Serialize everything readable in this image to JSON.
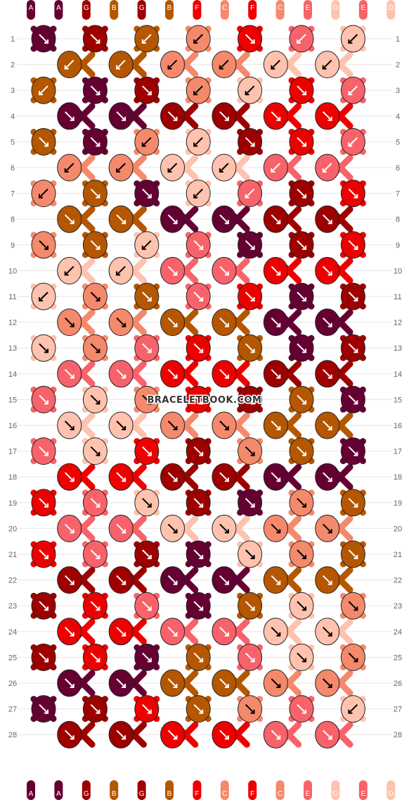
{
  "watermark": "BRACELETBOOK.COM",
  "strands_top": [
    "A",
    "A",
    "G",
    "B",
    "G",
    "B",
    "F",
    "C",
    "F",
    "C",
    "E",
    "D",
    "E",
    "D"
  ],
  "strands_bottom": [
    "A",
    "A",
    "G",
    "B",
    "G",
    "B",
    "F",
    "C",
    "F",
    "C",
    "E",
    "D",
    "E",
    "D"
  ],
  "colors": {
    "A": "#650032",
    "B": "#B55600",
    "C": "#F4896B",
    "D": "#FFC2AE",
    "E": "#F8626A",
    "F": "#EE0000",
    "G": "#9E0000"
  },
  "row_count": 28,
  "knots": [
    [
      "A:f",
      "G:f",
      "B:b",
      "C:b",
      "F:f",
      "E:b",
      "D:b"
    ],
    [
      "B:b",
      "B:b",
      "C:b",
      "C:b",
      "D:b",
      "D:b"
    ],
    [
      "B:b",
      "A:f",
      "G:f",
      "C:b",
      "D:b",
      "F:f",
      "E:b"
    ],
    [
      "A:f",
      "A:f",
      "G:f",
      "G:f",
      "F:f",
      "F:f"
    ],
    [
      "B:f",
      "A:f",
      "C:b",
      "D:b",
      "G:f",
      "F:f",
      "E:b"
    ],
    [
      "C:b",
      "C:b",
      "D:b",
      "D:b",
      "E:b",
      "E:b"
    ],
    [
      "C:b",
      "B:f",
      "A:f",
      "D:b",
      "E:b",
      "G:f",
      "F:f"
    ],
    [
      "B:f",
      "B:f",
      "A:f",
      "A:f",
      "G:f",
      "G:f"
    ],
    [
      "C:f",
      "B:f",
      "D:b",
      "E:f",
      "A:f",
      "G:f",
      "F:f"
    ],
    [
      "D:b",
      "D:b",
      "E:f",
      "E:f",
      "F:f",
      "F:f"
    ],
    [
      "D:b",
      "C:f",
      "B:f",
      "E:f",
      "F:f",
      "A:f",
      "G:f"
    ],
    [
      "C:f",
      "C:f",
      "B:f",
      "B:f",
      "A:f",
      "A:f"
    ],
    [
      "D:f",
      "C:f",
      "E:f",
      "F:f",
      "B:f",
      "A:f",
      "G:f"
    ],
    [
      "E:f",
      "E:f",
      "F:f",
      "F:f",
      "G:f",
      "G:f"
    ],
    [
      "E:f",
      "D:f",
      "C:f",
      "F:f",
      "G:f",
      "B:f",
      "A:f"
    ],
    [
      "D:f",
      "D:f",
      "C:f",
      "C:f",
      "B:f",
      "B:f"
    ],
    [
      "E:f",
      "D:f",
      "F:f",
      "G:f",
      "C:f",
      "B:f",
      "A:f"
    ],
    [
      "F:f",
      "F:f",
      "G:f",
      "G:f",
      "A:f",
      "A:f"
    ],
    [
      "F:f",
      "E:f",
      "D:f",
      "G:f",
      "A:f",
      "C:f",
      "B:f"
    ],
    [
      "E:f",
      "E:f",
      "D:f",
      "D:f",
      "C:f",
      "C:f"
    ],
    [
      "F:f",
      "E:f",
      "G:f",
      "A:f",
      "D:f",
      "C:f",
      "B:f"
    ],
    [
      "G:f",
      "G:f",
      "A:f",
      "A:f",
      "B:f",
      "B:f"
    ],
    [
      "G:f",
      "F:f",
      "E:f",
      "A:f",
      "B:f",
      "D:f",
      "C:f"
    ],
    [
      "F:f",
      "F:f",
      "E:f",
      "E:f",
      "D:f",
      "D:f"
    ],
    [
      "G:f",
      "F:f",
      "A:f",
      "B:f",
      "E:f",
      "D:f",
      "C:f"
    ],
    [
      "A:f",
      "A:f",
      "B:f",
      "B:f",
      "C:f",
      "C:f"
    ],
    [
      "A:f",
      "G:f",
      "F:f",
      "B:f",
      "C:f",
      "E:f",
      "D:b"
    ],
    [
      "G:f",
      "G:f",
      "F:f",
      "F:f",
      "E:f",
      "E:f"
    ]
  ]
}
